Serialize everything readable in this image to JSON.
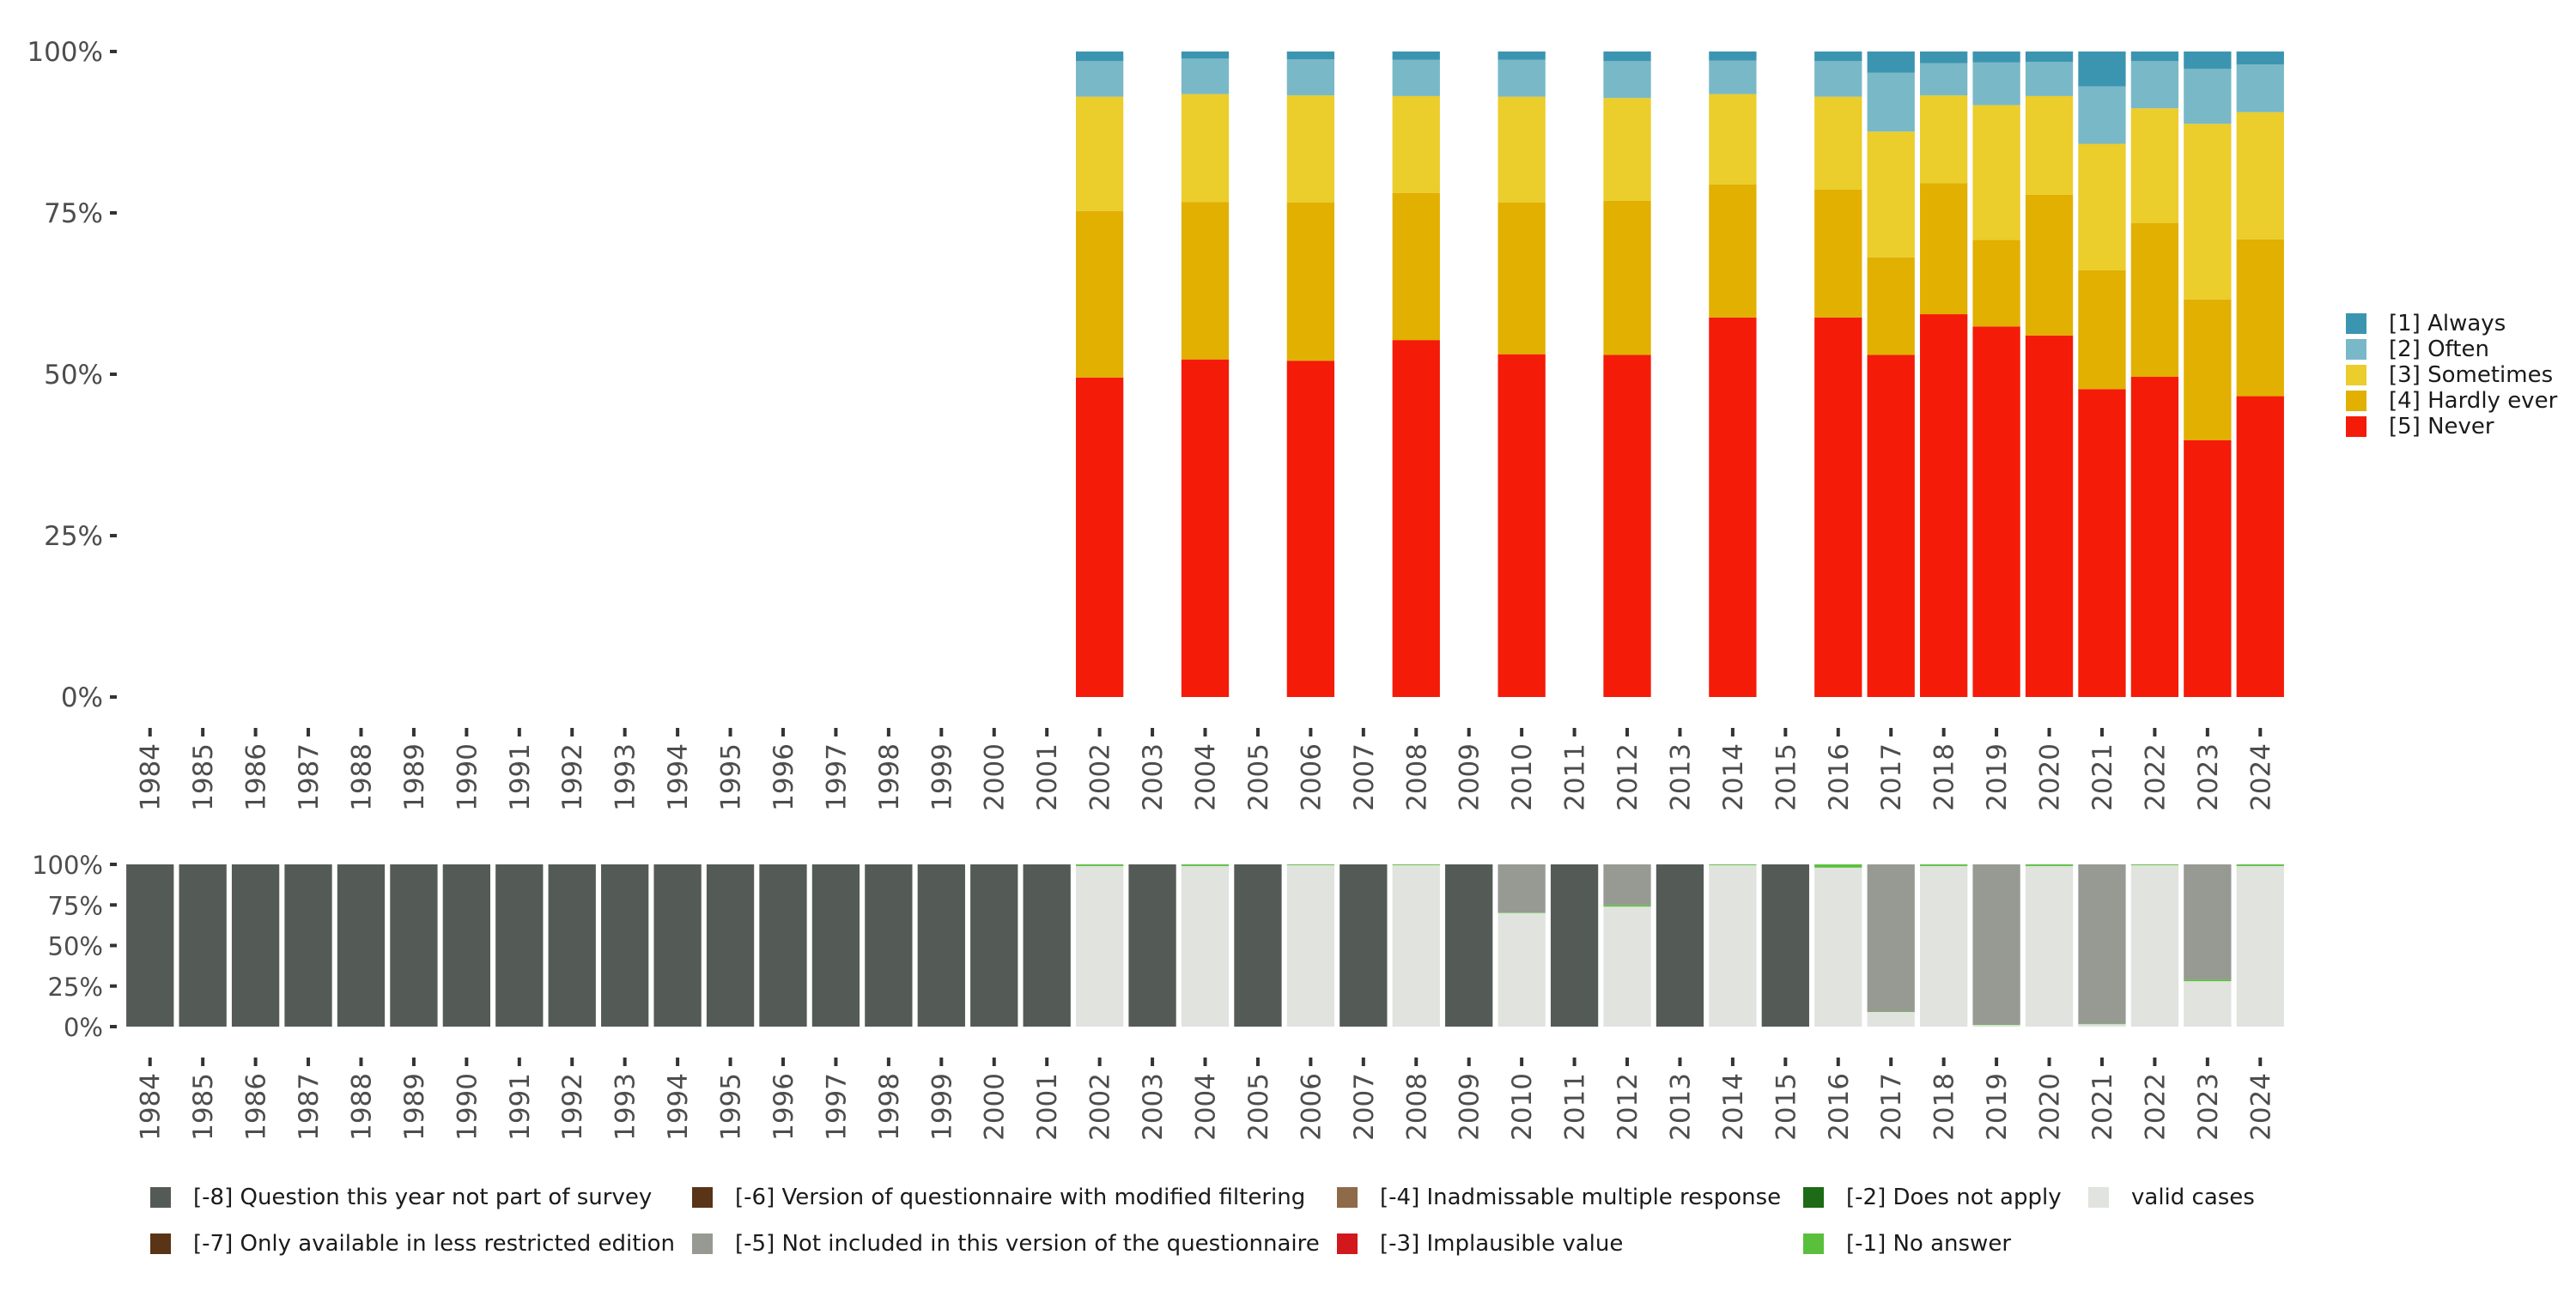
{
  "chart_data": [
    {
      "type": "bar",
      "stacked": true,
      "normalized": true,
      "name": "response-distribution",
      "categories": [
        "1984",
        "1985",
        "1986",
        "1987",
        "1988",
        "1989",
        "1990",
        "1991",
        "1992",
        "1993",
        "1994",
        "1995",
        "1996",
        "1997",
        "1998",
        "1999",
        "2000",
        "2001",
        "2002",
        "2003",
        "2004",
        "2005",
        "2006",
        "2007",
        "2008",
        "2009",
        "2010",
        "2011",
        "2012",
        "2013",
        "2014",
        "2015",
        "2016",
        "2017",
        "2018",
        "2019",
        "2020",
        "2021",
        "2022",
        "2023",
        "2024"
      ],
      "ylim": [
        0,
        100
      ],
      "yticks": [
        0,
        25,
        50,
        75,
        100
      ],
      "ytick_labels": [
        "0%",
        "25%",
        "50%",
        "75%",
        "100%"
      ],
      "series": [
        {
          "name": "[5] Never",
          "color": "#f41b08",
          "values": [
            null,
            null,
            null,
            null,
            null,
            null,
            null,
            null,
            null,
            null,
            null,
            null,
            null,
            null,
            null,
            null,
            null,
            null,
            49.5,
            null,
            52.3,
            null,
            52.1,
            null,
            55.3,
            null,
            53.1,
            null,
            53,
            null,
            58.8,
            null,
            58.8,
            53,
            59.3,
            57.4,
            56,
            47.7,
            49.6,
            39.8,
            46.6
          ]
        },
        {
          "name": "[4] Hardly ever",
          "color": "#e1b000",
          "values": [
            null,
            null,
            null,
            null,
            null,
            null,
            null,
            null,
            null,
            null,
            null,
            null,
            null,
            null,
            null,
            null,
            null,
            null,
            25.8,
            null,
            24.4,
            null,
            24.5,
            null,
            22.8,
            null,
            23.5,
            null,
            23.9,
            null,
            20.6,
            null,
            19.8,
            15.1,
            20.3,
            13.4,
            21.8,
            18.4,
            23.8,
            21.8,
            24.3
          ]
        },
        {
          "name": "[3] Sometimes",
          "color": "#ebcd2b",
          "values": [
            null,
            null,
            null,
            null,
            null,
            null,
            null,
            null,
            null,
            null,
            null,
            null,
            null,
            null,
            null,
            null,
            null,
            null,
            17.7,
            null,
            16.7,
            null,
            16.6,
            null,
            15,
            null,
            16.4,
            null,
            15.9,
            null,
            14,
            null,
            14.4,
            19.5,
            13.6,
            20.9,
            15.3,
            19.6,
            17.8,
            27.2,
            19.7
          ]
        },
        {
          "name": "[2] Often",
          "color": "#79b8c7",
          "values": [
            null,
            null,
            null,
            null,
            null,
            null,
            null,
            null,
            null,
            null,
            null,
            null,
            null,
            null,
            null,
            null,
            null,
            null,
            5.5,
            null,
            5.5,
            null,
            5.6,
            null,
            5.6,
            null,
            5.7,
            null,
            5.7,
            null,
            5.2,
            null,
            5.5,
            9.1,
            5,
            6.6,
            5.3,
            8.9,
            7.3,
            8.5,
            7.4
          ]
        },
        {
          "name": "[1] Always",
          "color": "#3c95b0",
          "values": [
            null,
            null,
            null,
            null,
            null,
            null,
            null,
            null,
            null,
            null,
            null,
            null,
            null,
            null,
            null,
            null,
            null,
            null,
            1.5,
            null,
            1.1,
            null,
            1.2,
            null,
            1.3,
            null,
            1.3,
            null,
            1.5,
            null,
            1.4,
            null,
            1.5,
            3.3,
            1.8,
            1.7,
            1.6,
            5.4,
            1.5,
            2.7,
            2
          ]
        }
      ],
      "legend_position": "right"
    },
    {
      "type": "bar",
      "stacked": true,
      "normalized": true,
      "name": "missing-distribution",
      "categories": [
        "1984",
        "1985",
        "1986",
        "1987",
        "1988",
        "1989",
        "1990",
        "1991",
        "1992",
        "1993",
        "1994",
        "1995",
        "1996",
        "1997",
        "1998",
        "1999",
        "2000",
        "2001",
        "2002",
        "2003",
        "2004",
        "2005",
        "2006",
        "2007",
        "2008",
        "2009",
        "2010",
        "2011",
        "2012",
        "2013",
        "2014",
        "2015",
        "2016",
        "2017",
        "2018",
        "2019",
        "2020",
        "2021",
        "2022",
        "2023",
        "2024"
      ],
      "ylim": [
        0,
        100
      ],
      "yticks": [
        0,
        25,
        50,
        75,
        100
      ],
      "ytick_labels": [
        "0%",
        "25%",
        "50%",
        "75%",
        "100%"
      ],
      "series": [
        {
          "name": "valid cases",
          "color": "#e0e3de",
          "values": [
            0,
            0,
            0,
            0,
            0,
            0,
            0,
            0,
            0,
            0,
            0,
            0,
            0,
            0,
            0,
            0,
            0,
            0,
            99,
            0,
            99,
            0,
            99.5,
            0,
            99.5,
            0,
            70,
            0,
            74,
            0,
            99.5,
            0,
            98,
            9,
            99,
            1,
            99,
            1.5,
            99.5,
            28,
            99
          ]
        },
        {
          "name": "[-1] No answer",
          "color": "#5bbf3e",
          "values": [
            0,
            0,
            0,
            0,
            0,
            0,
            0,
            0,
            0,
            0,
            0,
            0,
            0,
            0,
            0,
            0,
            0,
            0,
            1,
            0,
            1,
            0,
            0.5,
            0,
            0.5,
            0,
            0.3,
            0,
            1,
            0,
            0.5,
            0,
            2,
            0.3,
            1,
            0.3,
            1,
            0.3,
            0.5,
            1,
            1
          ]
        },
        {
          "name": "[-5] Not included in this version of the questionnaire",
          "color": "#969a93",
          "values": [
            0,
            0,
            0,
            0,
            0,
            0,
            0,
            0,
            0,
            0,
            0,
            0,
            0,
            0,
            0,
            0,
            0,
            0,
            0,
            0,
            0,
            0,
            0,
            0,
            0,
            0,
            29.7,
            0,
            25,
            0,
            0,
            0,
            0,
            90.7,
            0,
            98.7,
            0,
            98.2,
            0,
            71,
            0
          ]
        },
        {
          "name": "[-8] Question this year not part of survey",
          "color": "#545a55",
          "values": [
            100,
            100,
            100,
            100,
            100,
            100,
            100,
            100,
            100,
            100,
            100,
            100,
            100,
            100,
            100,
            100,
            100,
            100,
            0,
            100,
            0,
            100,
            0,
            100,
            0,
            100,
            0,
            100,
            0,
            100,
            0,
            100,
            0,
            0,
            0,
            0,
            0,
            0,
            0,
            0,
            0
          ]
        }
      ]
    }
  ],
  "main_legend": [
    {
      "label": "[1] Always",
      "color": "#3c95b0"
    },
    {
      "label": "[2] Often",
      "color": "#79b8c7"
    },
    {
      "label": "[3] Sometimes",
      "color": "#ebcd2b"
    },
    {
      "label": "[4] Hardly ever",
      "color": "#e1b000"
    },
    {
      "label": "[5] Never",
      "color": "#f41b08"
    }
  ],
  "bottom_legend": [
    {
      "label": "[-8] Question this year not part of survey",
      "color": "#545a55"
    },
    {
      "label": "[-7] Only available in less restricted edition",
      "color": "#5a3416"
    },
    {
      "label": "[-6] Version of questionnaire with modified filtering",
      "color": "#5a3416"
    },
    {
      "label": "[-5] Not included in this version of the questionnaire",
      "color": "#969a93"
    },
    {
      "label": "[-4] Inadmissable multiple response",
      "color": "#8e6a48"
    },
    {
      "label": "[-3] Implausible value",
      "color": "#d2181c"
    },
    {
      "label": "[-2] Does not apply",
      "color": "#1d6a17"
    },
    {
      "label": "[-1] No answer",
      "color": "#5bbf3e"
    },
    {
      "label": "valid cases",
      "color": "#e0e3de"
    }
  ]
}
